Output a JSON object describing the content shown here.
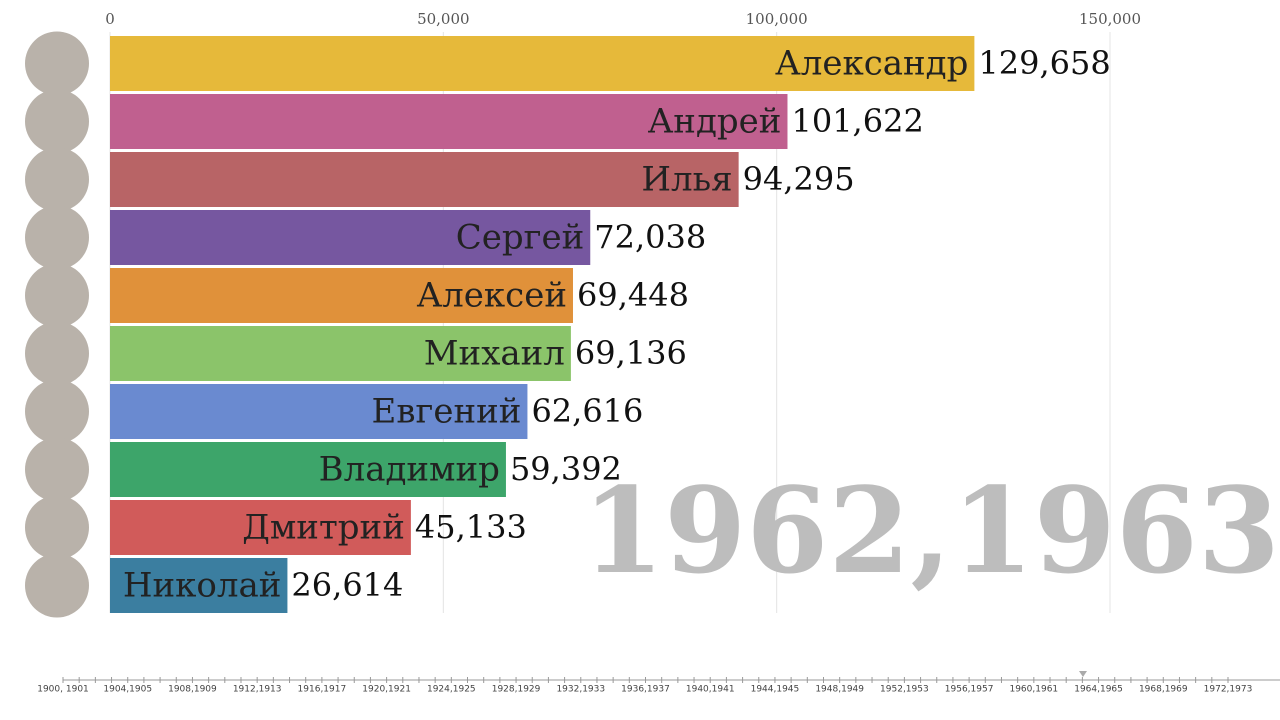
{
  "chart_data": {
    "type": "bar",
    "orientation": "horizontal",
    "categories": [
      "Александр",
      "Андрей",
      "Илья",
      "Сергей",
      "Алексей",
      "Михаил",
      "Евгений",
      "Владимир",
      "Дмитрий",
      "Николай"
    ],
    "values": [
      129658,
      101622,
      94295,
      72038,
      69448,
      69136,
      62616,
      59392,
      45133,
      26614
    ],
    "value_labels": [
      "129,658",
      "101,622",
      "94,295",
      "72,038",
      "69,448",
      "69,136",
      "62,616",
      "59,392",
      "45,133",
      "26,614"
    ],
    "colors": [
      "#e6b93a",
      "#c0608f",
      "#b86466",
      "#7657a0",
      "#e0913a",
      "#8bc46a",
      "#6a8ad0",
      "#3da56a",
      "#d15b5a",
      "#3b7ea0"
    ],
    "xlim": [
      0,
      175500
    ],
    "xticks": [
      0,
      {
        "value": 50000,
        "label": "50,000"
      },
      {
        "value": 100000,
        "label": "100,000"
      },
      {
        "value": 150000,
        "label": "150,000"
      }
    ],
    "grid": true,
    "period_label": "1962,1963",
    "timeline_labels": [
      "1900, 1901",
      "1904,1905",
      "1908,1909",
      "1912,1913",
      "1916,1917",
      "1920,1921",
      "1924,1925",
      "1928,1929",
      "1932,1933",
      "1936,1937",
      "1940,1941",
      "1944,1945",
      "1948,1949",
      "1952,1953",
      "1956,1957",
      "1960,1961",
      "1964,1965",
      "1968,1969",
      "1972,1973"
    ]
  }
}
